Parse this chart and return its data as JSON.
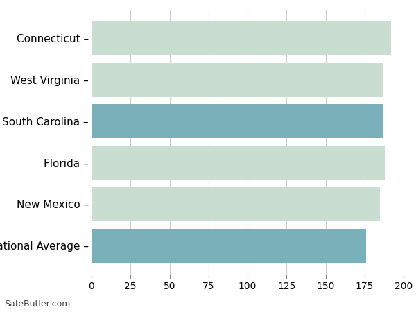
{
  "categories": [
    "Connecticut",
    "West Virginia",
    "South Carolina",
    "Florida",
    "New Mexico",
    "National Average"
  ],
  "values": [
    192,
    187,
    187,
    188,
    185,
    176
  ],
  "bar_colors": [
    "#c9ddd1",
    "#c9ddd1",
    "#7ab0ba",
    "#c9ddd1",
    "#c9ddd1",
    "#7ab0ba"
  ],
  "xlim": [
    0,
    200
  ],
  "xticks": [
    0,
    25,
    50,
    75,
    100,
    125,
    150,
    175,
    200
  ],
  "background_color": "#ffffff",
  "grid_color": "#cccccc",
  "watermark": "SafeButler.com",
  "bar_height": 0.82,
  "label_fontsize": 11,
  "tick_fontsize": 10
}
